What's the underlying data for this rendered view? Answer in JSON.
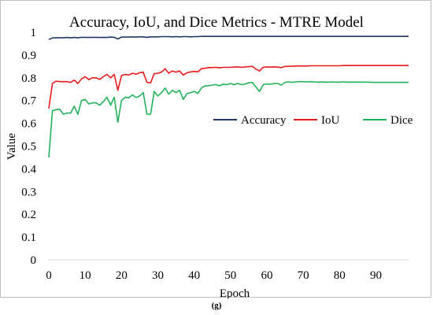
{
  "caption": "(g)",
  "chart_data": {
    "type": "line",
    "title": "Accuracy, IoU, and Dice Metrics - MTRE Model",
    "xlabel": "Epoch",
    "ylabel": "Value",
    "xlim": [
      0,
      99
    ],
    "ylim": [
      0,
      1
    ],
    "x_ticks": [
      "0",
      "10",
      "20",
      "30",
      "40",
      "50",
      "60",
      "70",
      "80",
      "90"
    ],
    "y_ticks": [
      "0",
      "0.1",
      "0.2",
      "0.3",
      "0.4",
      "0.5",
      "0.6",
      "0.7",
      "0.8",
      "0.9",
      "1"
    ],
    "grid": false,
    "legend_position": "middle-right",
    "series": [
      {
        "name": "Accuracy",
        "color": "#1f3864",
        "values": [
          0.968,
          0.975,
          0.976,
          0.976,
          0.976,
          0.977,
          0.976,
          0.977,
          0.976,
          0.978,
          0.978,
          0.977,
          0.978,
          0.978,
          0.977,
          0.978,
          0.977,
          0.979,
          0.978,
          0.971,
          0.979,
          0.979,
          0.979,
          0.98,
          0.979,
          0.98,
          0.98,
          0.978,
          0.98,
          0.98,
          0.98,
          0.981,
          0.981,
          0.981,
          0.98,
          0.981,
          0.98,
          0.981,
          0.981,
          0.98,
          0.981,
          0.981,
          0.982,
          0.982,
          0.982,
          0.982,
          0.982,
          0.982,
          0.982,
          0.982,
          0.982,
          0.982,
          0.982,
          0.982,
          0.982,
          0.982,
          0.982,
          0.982,
          0.982,
          0.982,
          0.982,
          0.982,
          0.982,
          0.982,
          0.982,
          0.982,
          0.982,
          0.982,
          0.982,
          0.982,
          0.982,
          0.982,
          0.982,
          0.982,
          0.982,
          0.982,
          0.982,
          0.982,
          0.982,
          0.982,
          0.982,
          0.982,
          0.982,
          0.982,
          0.982,
          0.982,
          0.982,
          0.982,
          0.982,
          0.982,
          0.982,
          0.982,
          0.982,
          0.982,
          0.982,
          0.982,
          0.982,
          0.982,
          0.982,
          0.982
        ]
      },
      {
        "name": "IoU",
        "color": "#e81c1c",
        "values": [
          0.665,
          0.775,
          0.785,
          0.783,
          0.783,
          0.783,
          0.78,
          0.79,
          0.775,
          0.795,
          0.805,
          0.792,
          0.8,
          0.8,
          0.793,
          0.805,
          0.815,
          0.8,
          0.815,
          0.745,
          0.81,
          0.815,
          0.812,
          0.82,
          0.816,
          0.822,
          0.825,
          0.78,
          0.778,
          0.818,
          0.82,
          0.825,
          0.84,
          0.82,
          0.83,
          0.825,
          0.83,
          0.812,
          0.822,
          0.826,
          0.828,
          0.826,
          0.84,
          0.842,
          0.845,
          0.845,
          0.846,
          0.844,
          0.846,
          0.846,
          0.846,
          0.847,
          0.848,
          0.846,
          0.848,
          0.849,
          0.85,
          0.838,
          0.83,
          0.846,
          0.848,
          0.847,
          0.848,
          0.847,
          0.845,
          0.85,
          0.85,
          0.851,
          0.852,
          0.852,
          0.852,
          0.852,
          0.853,
          0.853,
          0.853,
          0.853,
          0.853,
          0.853,
          0.853,
          0.853,
          0.853,
          0.854,
          0.854,
          0.854,
          0.854,
          0.854,
          0.854,
          0.854,
          0.854,
          0.854,
          0.854,
          0.854,
          0.854,
          0.854,
          0.854,
          0.854,
          0.854,
          0.854,
          0.854,
          0.854
        ]
      },
      {
        "name": "Dice",
        "color": "#22b35a",
        "values": [
          0.45,
          0.655,
          0.66,
          0.662,
          0.64,
          0.645,
          0.645,
          0.675,
          0.64,
          0.7,
          0.705,
          0.685,
          0.69,
          0.69,
          0.68,
          0.695,
          0.715,
          0.68,
          0.715,
          0.605,
          0.7,
          0.715,
          0.712,
          0.725,
          0.713,
          0.72,
          0.735,
          0.64,
          0.64,
          0.74,
          0.72,
          0.735,
          0.755,
          0.728,
          0.745,
          0.735,
          0.745,
          0.705,
          0.73,
          0.735,
          0.74,
          0.732,
          0.755,
          0.765,
          0.765,
          0.768,
          0.77,
          0.765,
          0.772,
          0.77,
          0.775,
          0.77,
          0.775,
          0.77,
          0.773,
          0.778,
          0.78,
          0.76,
          0.74,
          0.77,
          0.773,
          0.772,
          0.775,
          0.775,
          0.768,
          0.78,
          0.782,
          0.78,
          0.782,
          0.783,
          0.783,
          0.782,
          0.783,
          0.782,
          0.781,
          0.782,
          0.781,
          0.781,
          0.782,
          0.781,
          0.781,
          0.782,
          0.781,
          0.781,
          0.781,
          0.781,
          0.781,
          0.781,
          0.781,
          0.78,
          0.78,
          0.78,
          0.78,
          0.78,
          0.78,
          0.78,
          0.78,
          0.78,
          0.78,
          0.78
        ]
      }
    ]
  }
}
